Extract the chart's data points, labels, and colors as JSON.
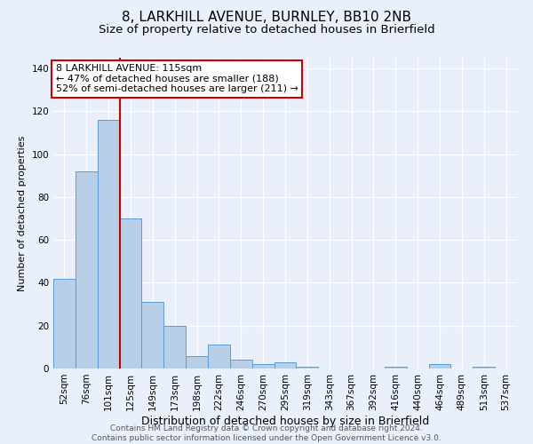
{
  "title1": "8, LARKHILL AVENUE, BURNLEY, BB10 2NB",
  "title2": "Size of property relative to detached houses in Brierfield",
  "xlabel": "Distribution of detached houses by size in Brierfield",
  "ylabel": "Number of detached properties",
  "categories": [
    "52sqm",
    "76sqm",
    "101sqm",
    "125sqm",
    "149sqm",
    "173sqm",
    "198sqm",
    "222sqm",
    "246sqm",
    "270sqm",
    "295sqm",
    "319sqm",
    "343sqm",
    "367sqm",
    "392sqm",
    "416sqm",
    "440sqm",
    "464sqm",
    "489sqm",
    "513sqm",
    "537sqm"
  ],
  "values": [
    42,
    92,
    116,
    70,
    31,
    20,
    6,
    11,
    4,
    2,
    3,
    1,
    0,
    0,
    0,
    1,
    0,
    2,
    0,
    1,
    0
  ],
  "bar_color": "#b8cfe8",
  "bar_edge_color": "#5b9bd5",
  "vline_x": 2.5,
  "vline_color": "#cc0000",
  "annotation_text": "8 LARKHILL AVENUE: 115sqm\n← 47% of detached houses are smaller (188)\n52% of semi-detached houses are larger (211) →",
  "annotation_box_color": "white",
  "annotation_box_edge": "#cc0000",
  "ylim": [
    0,
    145
  ],
  "yticks": [
    0,
    20,
    40,
    60,
    80,
    100,
    120,
    140
  ],
  "background_color": "#eaf0fb",
  "grid_color": "white",
  "footer_text": "Contains HM Land Registry data © Crown copyright and database right 2024.\nContains public sector information licensed under the Open Government Licence v3.0.",
  "title1_fontsize": 11,
  "title2_fontsize": 9.5,
  "xlabel_fontsize": 9,
  "ylabel_fontsize": 8,
  "tick_fontsize": 7.5,
  "annotation_fontsize": 8,
  "footer_fontsize": 6.5
}
